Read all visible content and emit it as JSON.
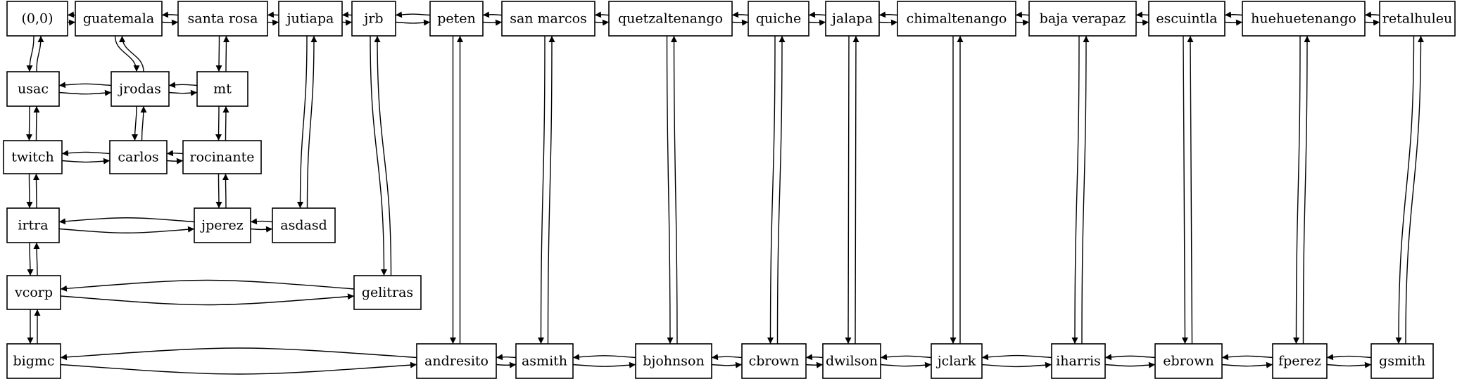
{
  "nodes": [
    {
      "id": "origin",
      "label": "(0,0)"
    },
    {
      "id": "guatemala",
      "label": "guatemala"
    },
    {
      "id": "santa_rosa",
      "label": "santa rosa"
    },
    {
      "id": "jutiapa",
      "label": "jutiapa"
    },
    {
      "id": "jrb",
      "label": "jrb"
    },
    {
      "id": "peten",
      "label": "peten"
    },
    {
      "id": "san_marcos",
      "label": "san marcos"
    },
    {
      "id": "quetzaltenango",
      "label": "quetzaltenango"
    },
    {
      "id": "quiche",
      "label": "quiche"
    },
    {
      "id": "jalapa",
      "label": "jalapa"
    },
    {
      "id": "chimaltenango",
      "label": "chimaltenango"
    },
    {
      "id": "baja_verapaz",
      "label": "baja verapaz"
    },
    {
      "id": "escuintla",
      "label": "escuintla"
    },
    {
      "id": "huehuetenango",
      "label": "huehuetenango"
    },
    {
      "id": "retalhuleu",
      "label": "retalhuleu"
    },
    {
      "id": "usac",
      "label": "usac"
    },
    {
      "id": "jrodas",
      "label": "jrodas"
    },
    {
      "id": "mt",
      "label": "mt"
    },
    {
      "id": "twitch",
      "label": "twitch"
    },
    {
      "id": "carlos",
      "label": "carlos"
    },
    {
      "id": "rocinante",
      "label": "rocinante"
    },
    {
      "id": "irtra",
      "label": "irtra"
    },
    {
      "id": "jperez",
      "label": "jperez"
    },
    {
      "id": "asdasd",
      "label": "asdasd"
    },
    {
      "id": "vcorp",
      "label": "vcorp"
    },
    {
      "id": "gelitras",
      "label": "gelitras"
    },
    {
      "id": "bigmc",
      "label": "bigmc"
    },
    {
      "id": "andresito",
      "label": "andresito"
    },
    {
      "id": "asmith",
      "label": "asmith"
    },
    {
      "id": "bjohnson",
      "label": "bjohnson"
    },
    {
      "id": "cbrown",
      "label": "cbrown"
    },
    {
      "id": "dwilson",
      "label": "dwilson"
    },
    {
      "id": "jclark",
      "label": "jclark"
    },
    {
      "id": "iharris",
      "label": "iharris"
    },
    {
      "id": "ebrown",
      "label": "ebrown"
    },
    {
      "id": "fperez",
      "label": "fperez"
    },
    {
      "id": "gsmith",
      "label": "gsmith"
    }
  ],
  "edges": [
    [
      "origin",
      "guatemala"
    ],
    [
      "guatemala",
      "origin"
    ],
    [
      "guatemala",
      "santa_rosa"
    ],
    [
      "santa_rosa",
      "guatemala"
    ],
    [
      "santa_rosa",
      "jutiapa"
    ],
    [
      "jutiapa",
      "santa_rosa"
    ],
    [
      "jutiapa",
      "jrb"
    ],
    [
      "jrb",
      "jutiapa"
    ],
    [
      "jrb",
      "peten"
    ],
    [
      "peten",
      "jrb"
    ],
    [
      "peten",
      "san_marcos"
    ],
    [
      "san_marcos",
      "peten"
    ],
    [
      "san_marcos",
      "quetzaltenango"
    ],
    [
      "quetzaltenango",
      "san_marcos"
    ],
    [
      "quetzaltenango",
      "quiche"
    ],
    [
      "quiche",
      "quetzaltenango"
    ],
    [
      "quiche",
      "jalapa"
    ],
    [
      "jalapa",
      "quiche"
    ],
    [
      "jalapa",
      "chimaltenango"
    ],
    [
      "chimaltenango",
      "jalapa"
    ],
    [
      "chimaltenango",
      "baja_verapaz"
    ],
    [
      "baja_verapaz",
      "chimaltenango"
    ],
    [
      "baja_verapaz",
      "escuintla"
    ],
    [
      "escuintla",
      "baja_verapaz"
    ],
    [
      "escuintla",
      "huehuetenango"
    ],
    [
      "huehuetenango",
      "escuintla"
    ],
    [
      "huehuetenango",
      "retalhuleu"
    ],
    [
      "retalhuleu",
      "huehuetenango"
    ],
    [
      "origin",
      "usac"
    ],
    [
      "usac",
      "origin"
    ],
    [
      "guatemala",
      "jrodas"
    ],
    [
      "jrodas",
      "guatemala"
    ],
    [
      "santa_rosa",
      "mt"
    ],
    [
      "mt",
      "santa_rosa"
    ],
    [
      "usac",
      "jrodas"
    ],
    [
      "jrodas",
      "usac"
    ],
    [
      "jrodas",
      "mt"
    ],
    [
      "mt",
      "jrodas"
    ],
    [
      "usac",
      "twitch"
    ],
    [
      "twitch",
      "usac"
    ],
    [
      "jrodas",
      "carlos"
    ],
    [
      "carlos",
      "jrodas"
    ],
    [
      "mt",
      "rocinante"
    ],
    [
      "rocinante",
      "mt"
    ],
    [
      "twitch",
      "carlos"
    ],
    [
      "carlos",
      "twitch"
    ],
    [
      "carlos",
      "rocinante"
    ],
    [
      "rocinante",
      "carlos"
    ],
    [
      "twitch",
      "irtra"
    ],
    [
      "irtra",
      "twitch"
    ],
    [
      "rocinante",
      "jperez"
    ],
    [
      "jperez",
      "rocinante"
    ],
    [
      "irtra",
      "jperez"
    ],
    [
      "jperez",
      "irtra"
    ],
    [
      "jperez",
      "asdasd"
    ],
    [
      "asdasd",
      "jperez"
    ],
    [
      "jutiapa",
      "asdasd"
    ],
    [
      "asdasd",
      "jutiapa"
    ],
    [
      "irtra",
      "vcorp"
    ],
    [
      "vcorp",
      "irtra"
    ],
    [
      "vcorp",
      "gelitras"
    ],
    [
      "gelitras",
      "vcorp"
    ],
    [
      "jrb",
      "gelitras"
    ],
    [
      "gelitras",
      "jrb"
    ],
    [
      "vcorp",
      "bigmc"
    ],
    [
      "bigmc",
      "vcorp"
    ],
    [
      "bigmc",
      "andresito"
    ],
    [
      "andresito",
      "bigmc"
    ],
    [
      "peten",
      "andresito"
    ],
    [
      "andresito",
      "peten"
    ],
    [
      "andresito",
      "asmith"
    ],
    [
      "asmith",
      "andresito"
    ],
    [
      "san_marcos",
      "asmith"
    ],
    [
      "asmith",
      "san_marcos"
    ],
    [
      "asmith",
      "bjohnson"
    ],
    [
      "bjohnson",
      "asmith"
    ],
    [
      "quetzaltenango",
      "bjohnson"
    ],
    [
      "bjohnson",
      "quetzaltenango"
    ],
    [
      "bjohnson",
      "cbrown"
    ],
    [
      "cbrown",
      "bjohnson"
    ],
    [
      "quiche",
      "cbrown"
    ],
    [
      "cbrown",
      "quiche"
    ],
    [
      "cbrown",
      "dwilson"
    ],
    [
      "dwilson",
      "cbrown"
    ],
    [
      "jalapa",
      "dwilson"
    ],
    [
      "dwilson",
      "jalapa"
    ],
    [
      "dwilson",
      "jclark"
    ],
    [
      "jclark",
      "dwilson"
    ],
    [
      "chimaltenango",
      "jclark"
    ],
    [
      "jclark",
      "chimaltenango"
    ],
    [
      "jclark",
      "iharris"
    ],
    [
      "iharris",
      "jclark"
    ],
    [
      "baja_verapaz",
      "iharris"
    ],
    [
      "iharris",
      "baja_verapaz"
    ],
    [
      "iharris",
      "ebrown"
    ],
    [
      "ebrown",
      "iharris"
    ],
    [
      "escuintla",
      "ebrown"
    ],
    [
      "ebrown",
      "escuintla"
    ],
    [
      "ebrown",
      "fperez"
    ],
    [
      "fperez",
      "ebrown"
    ],
    [
      "huehuetenango",
      "fperez"
    ],
    [
      "fperez",
      "huehuetenango"
    ],
    [
      "fperez",
      "gsmith"
    ],
    [
      "gsmith",
      "fperez"
    ],
    [
      "retalhuleu",
      "gsmith"
    ],
    [
      "gsmith",
      "retalhuleu"
    ]
  ]
}
